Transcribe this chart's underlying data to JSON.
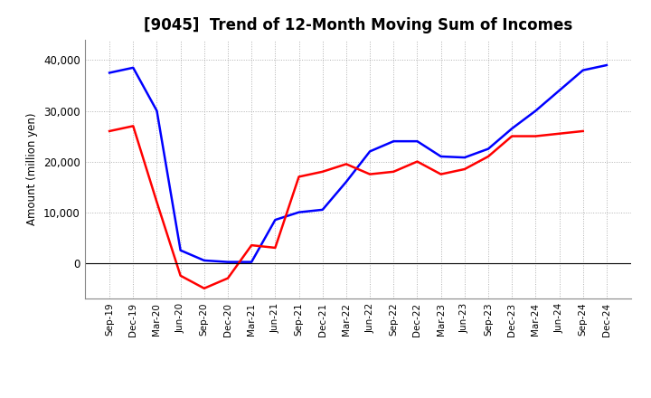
{
  "title": "[9045]  Trend of 12-Month Moving Sum of Incomes",
  "ylabel": "Amount (million yen)",
  "x_labels": [
    "Sep-19",
    "Dec-19",
    "Mar-20",
    "Jun-20",
    "Sep-20",
    "Dec-20",
    "Mar-21",
    "Jun-21",
    "Sep-21",
    "Dec-21",
    "Mar-22",
    "Jun-22",
    "Sep-22",
    "Dec-22",
    "Mar-23",
    "Jun-23",
    "Sep-23",
    "Dec-23",
    "Mar-24",
    "Jun-24",
    "Sep-24",
    "Dec-24"
  ],
  "ordinary_income": [
    37500,
    38500,
    30000,
    2500,
    500,
    200,
    200,
    8500,
    10000,
    10500,
    16000,
    22000,
    24000,
    24000,
    21000,
    20800,
    22500,
    26500,
    30000,
    34000,
    38000,
    39000
  ],
  "net_income": [
    26000,
    27000,
    12000,
    -2500,
    -5000,
    -3000,
    3500,
    3000,
    17000,
    18000,
    19500,
    17500,
    18000,
    20000,
    17500,
    18500,
    21000,
    25000,
    25000,
    25500,
    26000,
    null
  ],
  "ordinary_color": "#0000ff",
  "net_color": "#ff0000",
  "ylim_min": -7000,
  "ylim_max": 44000,
  "yticks": [
    0,
    10000,
    20000,
    30000,
    40000
  ],
  "background_color": "#ffffff",
  "grid_color": "#b0b0b0",
  "title_fontsize": 12,
  "title_fontweight": "bold"
}
